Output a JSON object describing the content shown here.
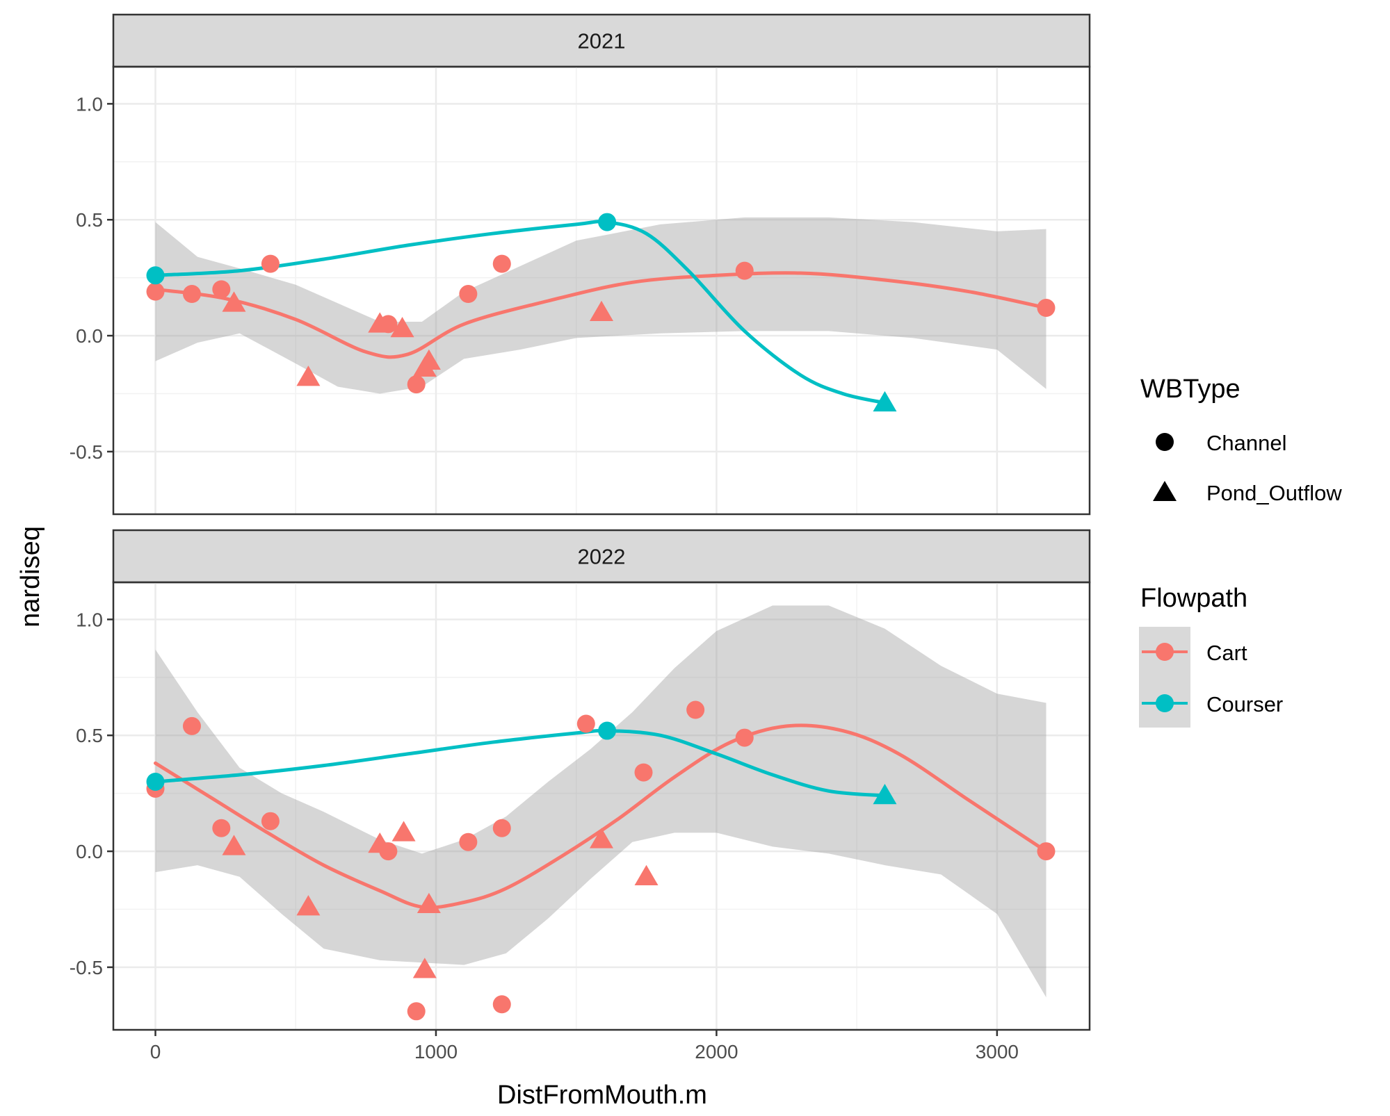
{
  "chart_data": {
    "type": "scatter",
    "xlabel": "DistFromMouth.m",
    "ylabel": "nardiseq",
    "xlim": [
      -150,
      3330
    ],
    "ylim": [
      -0.77,
      1.16
    ],
    "x_ticks": [
      0,
      1000,
      2000,
      3000
    ],
    "x_tick_labels": [
      "0",
      "1000",
      "2000",
      "3000"
    ],
    "y_ticks": [
      -0.5,
      0.0,
      0.5,
      1.0
    ],
    "y_tick_labels": [
      "-0.5",
      "0.0",
      "0.5",
      "1.0"
    ],
    "colors": {
      "Cart": "#F8766D",
      "Courser": "#00BFC4",
      "ribbon": "#999999"
    },
    "legend": {
      "position": "right",
      "shape_title": "WBType",
      "shape_entries": [
        {
          "label": "Channel",
          "shape": "circle"
        },
        {
          "label": "Pond_Outflow",
          "shape": "triangle"
        }
      ],
      "color_title": "Flowpath",
      "color_entries": [
        {
          "label": "Cart",
          "color": "#F8766D"
        },
        {
          "label": "Courser",
          "color": "#00BFC4"
        }
      ]
    },
    "panels": [
      {
        "strip": "2021",
        "points": [
          {
            "x": 0,
            "y": 0.19,
            "flowpath": "Cart",
            "wbtype": "Channel"
          },
          {
            "x": 130,
            "y": 0.18,
            "flowpath": "Cart",
            "wbtype": "Channel"
          },
          {
            "x": 235,
            "y": 0.2,
            "flowpath": "Cart",
            "wbtype": "Channel"
          },
          {
            "x": 280,
            "y": 0.14,
            "flowpath": "Cart",
            "wbtype": "Pond_Outflow"
          },
          {
            "x": 410,
            "y": 0.31,
            "flowpath": "Cart",
            "wbtype": "Channel"
          },
          {
            "x": 545,
            "y": -0.18,
            "flowpath": "Cart",
            "wbtype": "Pond_Outflow"
          },
          {
            "x": 800,
            "y": 0.05,
            "flowpath": "Cart",
            "wbtype": "Pond_Outflow"
          },
          {
            "x": 830,
            "y": 0.05,
            "flowpath": "Cart",
            "wbtype": "Channel"
          },
          {
            "x": 880,
            "y": 0.03,
            "flowpath": "Cart",
            "wbtype": "Pond_Outflow"
          },
          {
            "x": 930,
            "y": -0.21,
            "flowpath": "Cart",
            "wbtype": "Channel"
          },
          {
            "x": 960,
            "y": -0.14,
            "flowpath": "Cart",
            "wbtype": "Pond_Outflow"
          },
          {
            "x": 975,
            "y": -0.11,
            "flowpath": "Cart",
            "wbtype": "Pond_Outflow"
          },
          {
            "x": 1115,
            "y": 0.18,
            "flowpath": "Cart",
            "wbtype": "Channel"
          },
          {
            "x": 1235,
            "y": 0.31,
            "flowpath": "Cart",
            "wbtype": "Channel"
          },
          {
            "x": 1590,
            "y": 0.1,
            "flowpath": "Cart",
            "wbtype": "Pond_Outflow"
          },
          {
            "x": 2100,
            "y": 0.28,
            "flowpath": "Cart",
            "wbtype": "Channel"
          },
          {
            "x": 3175,
            "y": 0.12,
            "flowpath": "Cart",
            "wbtype": "Channel"
          },
          {
            "x": 0,
            "y": 0.26,
            "flowpath": "Courser",
            "wbtype": "Channel"
          },
          {
            "x": 1610,
            "y": 0.49,
            "flowpath": "Courser",
            "wbtype": "Channel"
          },
          {
            "x": 2600,
            "y": -0.29,
            "flowpath": "Courser",
            "wbtype": "Pond_Outflow"
          }
        ],
        "smooth": {
          "Cart": {
            "x": [
              0,
              250,
              500,
              750,
              900,
              1100,
              1400,
              1700,
              2000,
              2300,
              2600,
              2900,
              3175
            ],
            "y": [
              0.2,
              0.16,
              0.07,
              -0.07,
              -0.08,
              0.05,
              0.15,
              0.23,
              0.26,
              0.27,
              0.24,
              0.19,
              0.12
            ]
          },
          "Courser": {
            "x": [
              0,
              300,
              600,
              900,
              1200,
              1500,
              1610,
              1750,
              1900,
              2100,
              2300,
              2450,
              2600
            ],
            "y": [
              0.26,
              0.28,
              0.33,
              0.39,
              0.44,
              0.48,
              0.49,
              0.44,
              0.28,
              0.02,
              -0.17,
              -0.25,
              -0.29
            ]
          }
        },
        "ribbon": {
          "series": "Cart",
          "x": [
            0,
            150,
            300,
            500,
            650,
            800,
            950,
            1100,
            1300,
            1500,
            1800,
            2100,
            2400,
            2700,
            3000,
            3175
          ],
          "upper": [
            0.49,
            0.34,
            0.29,
            0.22,
            0.14,
            0.06,
            0.06,
            0.19,
            0.3,
            0.41,
            0.48,
            0.51,
            0.51,
            0.49,
            0.45,
            0.46
          ],
          "lower": [
            -0.11,
            -0.03,
            0.01,
            -0.12,
            -0.22,
            -0.25,
            -0.22,
            -0.1,
            -0.06,
            -0.01,
            0.01,
            0.02,
            0.02,
            -0.01,
            -0.06,
            -0.23
          ]
        }
      },
      {
        "strip": "2022",
        "points": [
          {
            "x": 0,
            "y": 0.27,
            "flowpath": "Cart",
            "wbtype": "Channel"
          },
          {
            "x": 130,
            "y": 0.54,
            "flowpath": "Cart",
            "wbtype": "Channel"
          },
          {
            "x": 235,
            "y": 0.1,
            "flowpath": "Cart",
            "wbtype": "Channel"
          },
          {
            "x": 280,
            "y": 0.02,
            "flowpath": "Cart",
            "wbtype": "Pond_Outflow"
          },
          {
            "x": 410,
            "y": 0.13,
            "flowpath": "Cart",
            "wbtype": "Channel"
          },
          {
            "x": 545,
            "y": -0.24,
            "flowpath": "Cart",
            "wbtype": "Pond_Outflow"
          },
          {
            "x": 800,
            "y": 0.03,
            "flowpath": "Cart",
            "wbtype": "Pond_Outflow"
          },
          {
            "x": 830,
            "y": 0.0,
            "flowpath": "Cart",
            "wbtype": "Channel"
          },
          {
            "x": 885,
            "y": 0.08,
            "flowpath": "Cart",
            "wbtype": "Pond_Outflow"
          },
          {
            "x": 930,
            "y": -0.69,
            "flowpath": "Cart",
            "wbtype": "Channel"
          },
          {
            "x": 960,
            "y": -0.51,
            "flowpath": "Cart",
            "wbtype": "Pond_Outflow"
          },
          {
            "x": 975,
            "y": -0.23,
            "flowpath": "Cart",
            "wbtype": "Pond_Outflow"
          },
          {
            "x": 1115,
            "y": 0.04,
            "flowpath": "Cart",
            "wbtype": "Channel"
          },
          {
            "x": 1235,
            "y": 0.1,
            "flowpath": "Cart",
            "wbtype": "Channel"
          },
          {
            "x": 1235,
            "y": -0.66,
            "flowpath": "Cart",
            "wbtype": "Channel"
          },
          {
            "x": 1535,
            "y": 0.55,
            "flowpath": "Cart",
            "wbtype": "Channel"
          },
          {
            "x": 1590,
            "y": 0.05,
            "flowpath": "Cart",
            "wbtype": "Pond_Outflow"
          },
          {
            "x": 1740,
            "y": 0.34,
            "flowpath": "Cart",
            "wbtype": "Channel"
          },
          {
            "x": 1750,
            "y": -0.11,
            "flowpath": "Cart",
            "wbtype": "Pond_Outflow"
          },
          {
            "x": 1925,
            "y": 0.61,
            "flowpath": "Cart",
            "wbtype": "Channel"
          },
          {
            "x": 2100,
            "y": 0.49,
            "flowpath": "Cart",
            "wbtype": "Channel"
          },
          {
            "x": 3175,
            "y": 0.0,
            "flowpath": "Cart",
            "wbtype": "Channel"
          },
          {
            "x": 0,
            "y": 0.3,
            "flowpath": "Courser",
            "wbtype": "Channel"
          },
          {
            "x": 1610,
            "y": 0.52,
            "flowpath": "Courser",
            "wbtype": "Channel"
          },
          {
            "x": 2600,
            "y": 0.24,
            "flowpath": "Courser",
            "wbtype": "Pond_Outflow"
          }
        ],
        "smooth": {
          "Cart": {
            "x": [
              0,
              200,
              400,
              600,
              800,
              950,
              1100,
              1250,
              1450,
              1650,
              1850,
              2050,
              2250,
              2450,
              2650,
              2900,
              3175
            ],
            "y": [
              0.38,
              0.23,
              0.08,
              -0.06,
              -0.17,
              -0.24,
              -0.22,
              -0.16,
              -0.02,
              0.14,
              0.32,
              0.47,
              0.54,
              0.52,
              0.42,
              0.22,
              0.0
            ]
          },
          "Courser": {
            "x": [
              0,
              300,
              600,
              900,
              1200,
              1500,
              1610,
              1800,
              2000,
              2200,
              2400,
              2600
            ],
            "y": [
              0.3,
              0.33,
              0.37,
              0.42,
              0.47,
              0.51,
              0.52,
              0.5,
              0.42,
              0.33,
              0.26,
              0.24
            ]
          }
        },
        "ribbon": {
          "series": "Cart",
          "x": [
            0,
            150,
            300,
            450,
            600,
            800,
            950,
            1100,
            1250,
            1400,
            1550,
            1700,
            1850,
            2000,
            2200,
            2400,
            2600,
            2800,
            3000,
            3175
          ],
          "upper": [
            0.87,
            0.6,
            0.36,
            0.25,
            0.17,
            0.05,
            -0.01,
            0.05,
            0.15,
            0.3,
            0.44,
            0.6,
            0.79,
            0.95,
            1.06,
            1.06,
            0.96,
            0.8,
            0.68,
            0.64
          ],
          "lower": [
            -0.09,
            -0.06,
            -0.11,
            -0.27,
            -0.42,
            -0.47,
            -0.48,
            -0.49,
            -0.44,
            -0.29,
            -0.12,
            0.04,
            0.08,
            0.08,
            0.02,
            -0.01,
            -0.06,
            -0.1,
            -0.27,
            -0.63
          ]
        }
      }
    ]
  }
}
